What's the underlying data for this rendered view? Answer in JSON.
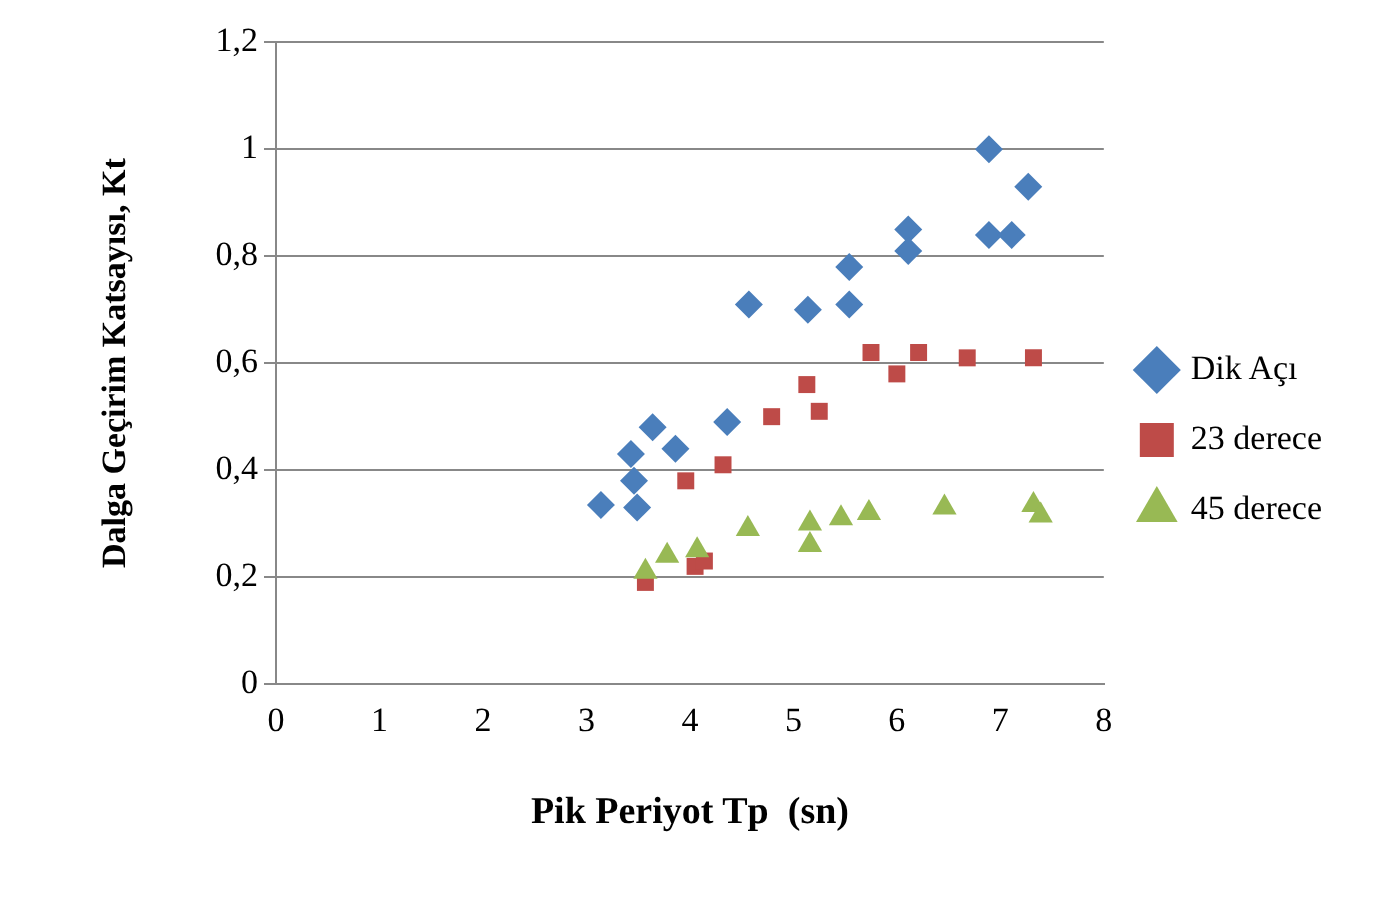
{
  "chart_data": {
    "type": "scatter",
    "xlabel": "Pik Periyot Tp  (sn)",
    "ylabel": "Dalga Geçirim Katsayısı, Kt",
    "xlim": [
      0,
      8
    ],
    "xticks": [
      0,
      1,
      2,
      3,
      4,
      5,
      6,
      7,
      8
    ],
    "ylim": [
      0,
      1.2
    ],
    "yticks": [
      {
        "value": 0,
        "label": "0"
      },
      {
        "value": 0.2,
        "label": "0,2"
      },
      {
        "value": 0.4,
        "label": "0,4"
      },
      {
        "value": 0.6,
        "label": "0,6"
      },
      {
        "value": 0.8,
        "label": "0,8"
      },
      {
        "value": 1,
        "label": "1"
      },
      {
        "value": 1.2,
        "label": "1,2"
      }
    ],
    "grid": "y",
    "legend": "right",
    "series": [
      {
        "name": "Dik Açı",
        "color": "#4a7ebb",
        "marker": "diamond",
        "x": [
          3.14,
          3.43,
          3.46,
          3.49,
          3.64,
          3.86,
          4.36,
          4.57,
          5.14,
          5.54,
          5.54,
          6.11,
          6.11,
          6.89,
          6.89,
          7.11,
          7.27
        ],
        "values": [
          0.335,
          0.43,
          0.38,
          0.33,
          0.48,
          0.44,
          0.49,
          0.71,
          0.7,
          0.71,
          0.78,
          0.85,
          0.81,
          1.0,
          0.84,
          0.84,
          0.93
        ]
      },
      {
        "name": "23 derece",
        "color": "#be4b48",
        "marker": "square",
        "x": [
          3.57,
          3.96,
          4.05,
          4.14,
          4.32,
          4.79,
          5.13,
          5.25,
          5.75,
          6.0,
          6.21,
          6.68,
          7.32
        ],
        "values": [
          0.19,
          0.38,
          0.22,
          0.23,
          0.41,
          0.5,
          0.56,
          0.51,
          0.62,
          0.58,
          0.62,
          0.61,
          0.61
        ]
      },
      {
        "name": "45 derece",
        "color": "#98b954",
        "marker": "triangle",
        "x": [
          3.57,
          3.78,
          4.07,
          4.56,
          5.16,
          5.16,
          5.46,
          5.73,
          6.46,
          7.32,
          7.39
        ],
        "values": [
          0.21,
          0.24,
          0.25,
          0.29,
          0.3,
          0.26,
          0.31,
          0.32,
          0.33,
          0.335,
          0.315
        ]
      }
    ]
  }
}
